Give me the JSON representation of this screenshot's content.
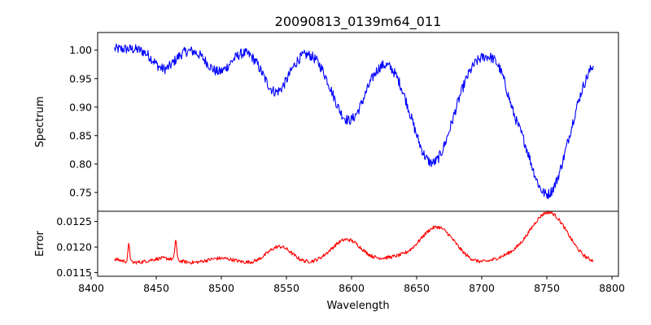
{
  "chart_data": [
    {
      "type": "line",
      "panel": "spectrum",
      "title": "20090813_0139m64_011",
      "ylabel": "Spectrum",
      "xlim": [
        8405,
        8805
      ],
      "ylim": [
        0.717,
        1.031
      ],
      "yticks": [
        0.75,
        0.8,
        0.85,
        0.9,
        0.95,
        1.0
      ],
      "ytick_labels": [
        "0.75",
        "0.80",
        "0.85",
        "0.90",
        "0.95",
        "1.00"
      ],
      "color": "#0000ff",
      "x_range": [
        8418,
        8786
      ],
      "features": [
        {
          "center": 8456,
          "depth": 0.035,
          "width": 8
        },
        {
          "center": 8498,
          "depth": 0.04,
          "width": 9
        },
        {
          "center": 8542,
          "depth": 0.075,
          "width": 10
        },
        {
          "center": 8598,
          "depth": 0.125,
          "width": 13
        },
        {
          "center": 8662,
          "depth": 0.2,
          "width": 16
        },
        {
          "center": 8750,
          "depth": 0.255,
          "width": 17
        },
        {
          "center": 8724,
          "depth": 0.03,
          "width": 6
        }
      ]
    },
    {
      "type": "line",
      "panel": "error",
      "xlabel": "Wavelength",
      "ylabel": "Error",
      "xlim": [
        8405,
        8805
      ],
      "ylim": [
        0.01143,
        0.0127
      ],
      "yticks": [
        0.0115,
        0.012,
        0.0125
      ],
      "ytick_labels": [
        "0.0115",
        "0.0120",
        "0.0125"
      ],
      "xticks": [
        8400,
        8450,
        8500,
        8550,
        8600,
        8650,
        8700,
        8750,
        8800
      ],
      "xtick_labels": [
        "8400",
        "8450",
        "8500",
        "8550",
        "8600",
        "8650",
        "8700",
        "8750",
        "8800"
      ],
      "color": "#ff0000",
      "x_range": [
        8418,
        8786
      ],
      "features": [
        {
          "center": 8545,
          "height": 0.00023,
          "width": 9
        },
        {
          "center": 8598,
          "height": 0.0004,
          "width": 11
        },
        {
          "center": 8664,
          "height": 0.00065,
          "width": 13
        },
        {
          "center": 8750,
          "height": 0.00095,
          "width": 14
        }
      ],
      "spikes": [
        {
          "center": 8429,
          "height": 0.00035
        },
        {
          "center": 8465,
          "height": 0.0004
        }
      ]
    }
  ]
}
